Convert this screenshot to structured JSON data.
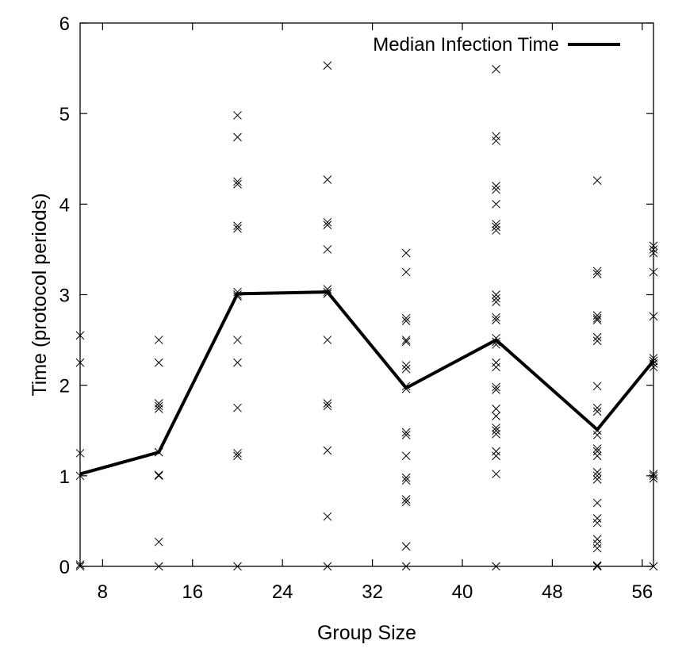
{
  "chart_data": {
    "type": "scatter",
    "xlabel": "Group Size",
    "ylabel": "Time (protocol periods)",
    "xlim": [
      6,
      57
    ],
    "ylim": [
      0,
      6
    ],
    "x_ticks": [
      8,
      16,
      24,
      32,
      40,
      48,
      56
    ],
    "y_ticks": [
      0,
      1,
      2,
      3,
      4,
      5,
      6
    ],
    "grid": false,
    "legend": {
      "position": "top-right",
      "entries": [
        "Median Infection Time"
      ]
    },
    "series": [
      {
        "name": "Median Infection Time",
        "style": "line",
        "color": "#000000",
        "points": [
          [
            6,
            1.02
          ],
          [
            13,
            1.26
          ],
          [
            20,
            3.01
          ],
          [
            28,
            3.03
          ],
          [
            35,
            1.97
          ],
          [
            43,
            2.5
          ],
          [
            52,
            1.51
          ],
          [
            57,
            2.27
          ]
        ]
      },
      {
        "style": "x-marker",
        "color": "#000000",
        "points": [
          [
            6,
            0
          ],
          [
            6,
            0.02
          ],
          [
            6,
            1.0
          ],
          [
            6,
            1.25
          ],
          [
            6,
            2.25
          ],
          [
            6,
            2.55
          ],
          [
            13,
            0
          ],
          [
            13,
            0.27
          ],
          [
            13,
            1.0
          ],
          [
            13,
            1.01
          ],
          [
            13,
            1.26
          ],
          [
            13,
            1.74
          ],
          [
            13,
            1.77
          ],
          [
            13,
            1.8
          ],
          [
            13,
            2.25
          ],
          [
            13,
            2.5
          ],
          [
            20,
            0
          ],
          [
            20,
            1.22
          ],
          [
            20,
            1.25
          ],
          [
            20,
            1.75
          ],
          [
            20,
            2.25
          ],
          [
            20,
            2.5
          ],
          [
            20,
            2.98
          ],
          [
            20,
            3.0
          ],
          [
            20,
            3.03
          ],
          [
            20,
            3.73
          ],
          [
            20,
            3.76
          ],
          [
            20,
            4.22
          ],
          [
            20,
            4.25
          ],
          [
            20,
            4.74
          ],
          [
            20,
            4.98
          ],
          [
            28,
            0
          ],
          [
            28,
            0.55
          ],
          [
            28,
            1.28
          ],
          [
            28,
            1.77
          ],
          [
            28,
            1.8
          ],
          [
            28,
            2.5
          ],
          [
            28,
            3.01
          ],
          [
            28,
            3.03
          ],
          [
            28,
            3.06
          ],
          [
            28,
            3.5
          ],
          [
            28,
            3.77
          ],
          [
            28,
            3.8
          ],
          [
            28,
            4.27
          ],
          [
            28,
            5.53
          ],
          [
            35,
            0
          ],
          [
            35,
            0.22
          ],
          [
            35,
            0.71
          ],
          [
            35,
            0.74
          ],
          [
            35,
            0.95
          ],
          [
            35,
            0.98
          ],
          [
            35,
            1.22
          ],
          [
            35,
            1.45
          ],
          [
            35,
            1.48
          ],
          [
            35,
            1.96
          ],
          [
            35,
            1.99
          ],
          [
            35,
            2.18
          ],
          [
            35,
            2.22
          ],
          [
            35,
            2.48
          ],
          [
            35,
            2.5
          ],
          [
            35,
            2.71
          ],
          [
            35,
            2.74
          ],
          [
            35,
            3.25
          ],
          [
            35,
            3.46
          ],
          [
            43,
            0
          ],
          [
            43,
            1.02
          ],
          [
            43,
            1.22
          ],
          [
            43,
            1.27
          ],
          [
            43,
            1.46
          ],
          [
            43,
            1.5
          ],
          [
            43,
            1.53
          ],
          [
            43,
            1.66
          ],
          [
            43,
            1.74
          ],
          [
            43,
            1.95
          ],
          [
            43,
            1.98
          ],
          [
            43,
            2.2
          ],
          [
            43,
            2.25
          ],
          [
            43,
            2.45
          ],
          [
            43,
            2.48
          ],
          [
            43,
            2.52
          ],
          [
            43,
            2.72
          ],
          [
            43,
            2.75
          ],
          [
            43,
            2.92
          ],
          [
            43,
            2.96
          ],
          [
            43,
            3.0
          ],
          [
            43,
            3.71
          ],
          [
            43,
            3.75
          ],
          [
            43,
            3.78
          ],
          [
            43,
            4.0
          ],
          [
            43,
            4.16
          ],
          [
            43,
            4.2
          ],
          [
            43,
            4.7
          ],
          [
            43,
            4.75
          ],
          [
            43,
            5.49
          ],
          [
            52,
            0
          ],
          [
            52,
            0.01
          ],
          [
            52,
            0.2
          ],
          [
            52,
            0.25
          ],
          [
            52,
            0.3
          ],
          [
            52,
            0.48
          ],
          [
            52,
            0.53
          ],
          [
            52,
            0.7
          ],
          [
            52,
            0.96
          ],
          [
            52,
            1.0
          ],
          [
            52,
            1.04
          ],
          [
            52,
            1.22
          ],
          [
            52,
            1.27
          ],
          [
            52,
            1.3
          ],
          [
            52,
            1.45
          ],
          [
            52,
            1.5
          ],
          [
            52,
            1.71
          ],
          [
            52,
            1.75
          ],
          [
            52,
            1.99
          ],
          [
            52,
            2.49
          ],
          [
            52,
            2.53
          ],
          [
            52,
            2.72
          ],
          [
            52,
            2.74
          ],
          [
            52,
            2.77
          ],
          [
            52,
            3.23
          ],
          [
            52,
            3.26
          ],
          [
            52,
            4.26
          ],
          [
            57,
            0
          ],
          [
            57,
            0.97
          ],
          [
            57,
            1.0
          ],
          [
            57,
            1.02
          ],
          [
            57,
            2.2
          ],
          [
            57,
            2.24
          ],
          [
            57,
            2.27
          ],
          [
            57,
            2.3
          ],
          [
            57,
            2.76
          ],
          [
            57,
            3.25
          ],
          [
            57,
            3.46
          ],
          [
            57,
            3.5
          ],
          [
            57,
            3.54
          ]
        ]
      }
    ]
  }
}
